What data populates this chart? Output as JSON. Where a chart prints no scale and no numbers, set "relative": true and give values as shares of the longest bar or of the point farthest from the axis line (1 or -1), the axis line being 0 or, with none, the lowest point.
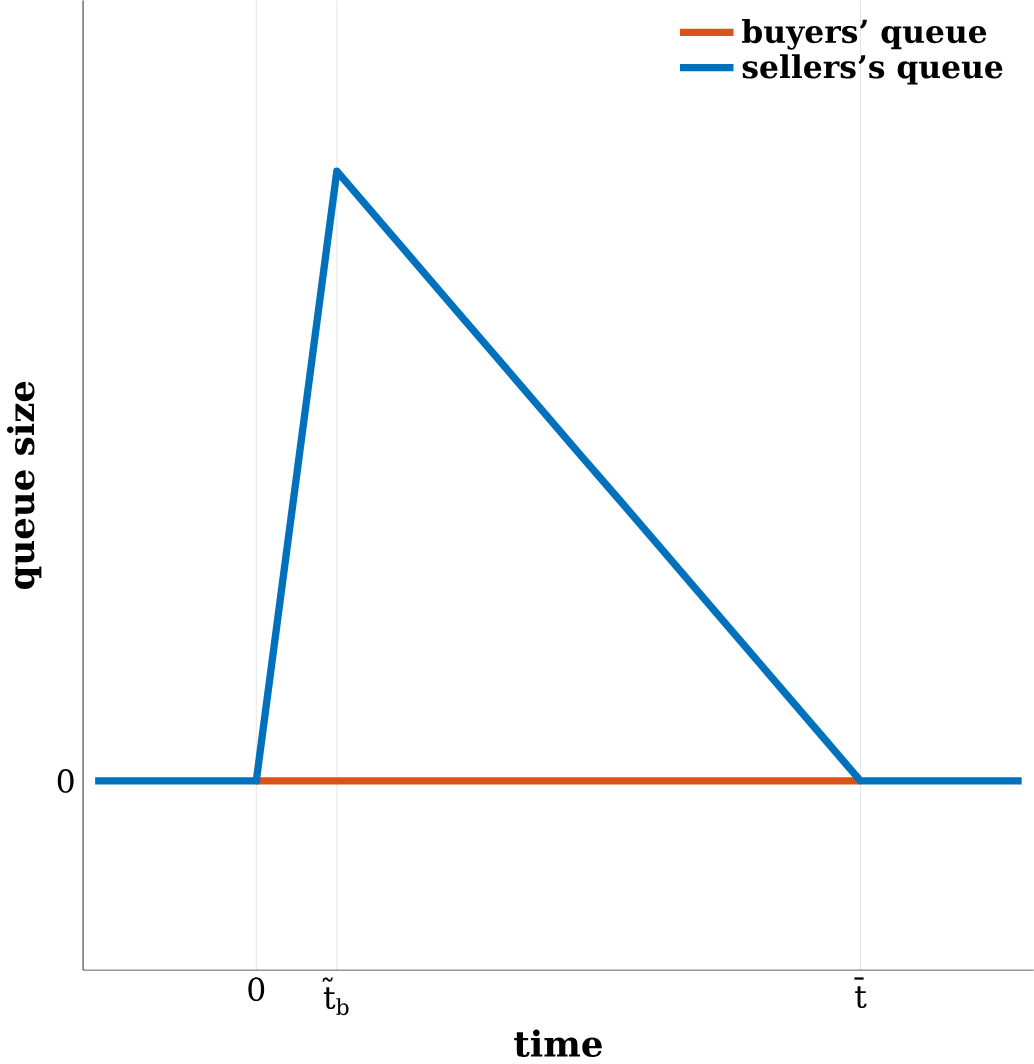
{
  "chart_data": {
    "type": "line",
    "xlabel": "time",
    "ylabel": "queue size",
    "relative": true,
    "categories": [
      null,
      null,
      null,
      null,
      "0",
      null,
      "t̃$_{b}$",
      null,
      null,
      null,
      null,
      null,
      null,
      null,
      null,
      null,
      null,
      null,
      null,
      "t̄",
      null,
      null,
      null,
      null
    ],
    "annotations": [
      "0"
    ],
    "grid": "x",
    "legend": "top right",
    "line_style": "solid",
    "marker": "none",
    "series": [
      {
        "name": "buyers’ queue",
        "color": "#d95319",
        "values": [
          null,
          null,
          null,
          null,
          0,
          0,
          0,
          0,
          0,
          0,
          0,
          0,
          0,
          0,
          0,
          0,
          0,
          0,
          0,
          0,
          null,
          null,
          null,
          null
        ]
      },
      {
        "name": "sellers’s queue",
        "color": "#0072bd",
        "values": [
          0,
          0,
          0,
          0,
          0,
          0.5,
          1,
          0.923,
          0.846,
          0.769,
          0.692,
          0.615,
          0.538,
          0.462,
          0.385,
          0.308,
          0.231,
          0.154,
          0.077,
          0,
          0,
          0,
          0,
          0
        ]
      }
    ]
  }
}
